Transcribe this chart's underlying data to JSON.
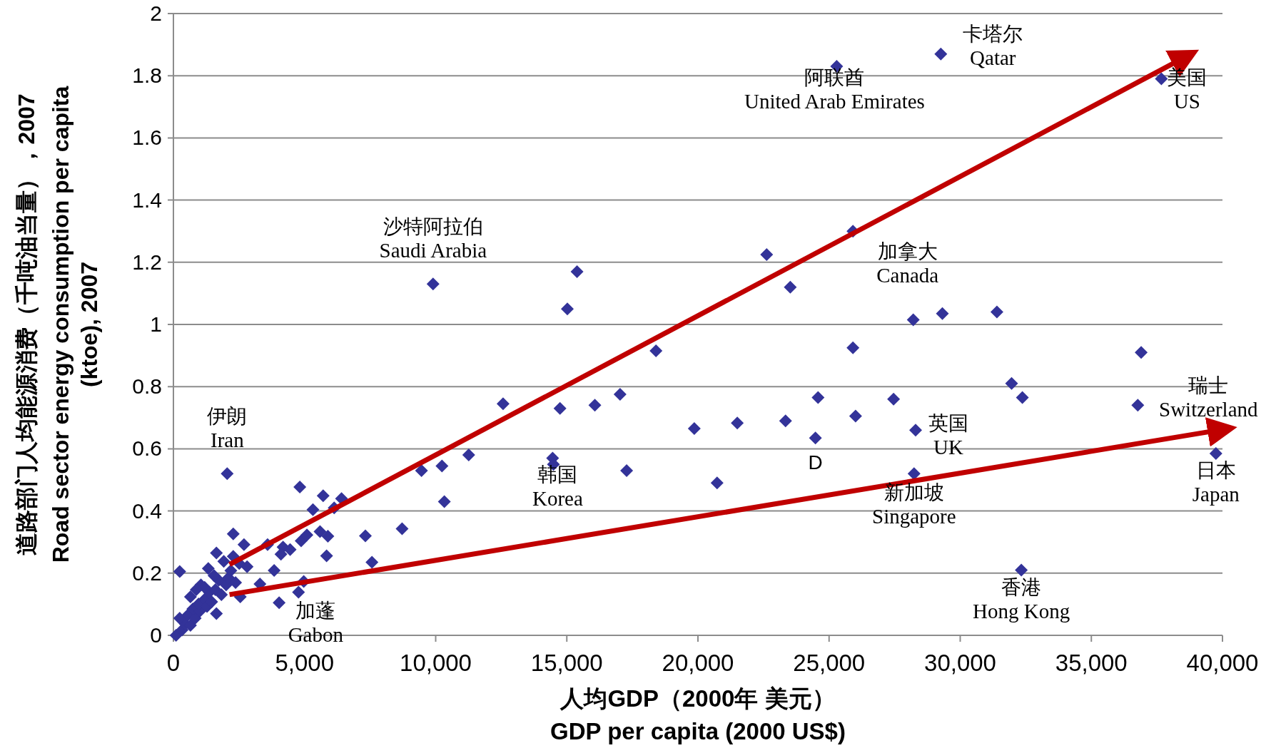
{
  "chart_data": {
    "type": "scatter",
    "xlabel": "人均GDP（2000年 美元）\nGDP per capita (2000 US$)",
    "ylabel": "道路部门人均能源消费（千吨油当量），2007\nRoad sector energy consumption per capita (ktoe), 2007",
    "xlim": [
      0,
      40000
    ],
    "ylim": [
      0,
      2
    ],
    "xticks": [
      0,
      {
        "value": 5000,
        "label": "5,000"
      },
      {
        "value": 10000,
        "label": "10,000"
      },
      {
        "value": 15000,
        "label": "15,000"
      },
      {
        "value": 20000,
        "label": "20,000"
      },
      {
        "value": 25000,
        "label": "25,000"
      },
      {
        "value": 30000,
        "label": "30,000"
      },
      {
        "value": 35000,
        "label": "35,000"
      },
      {
        "value": 40000,
        "label": "40,000"
      }
    ],
    "yticks": [
      0,
      0.2,
      0.4,
      0.6,
      0.8,
      1,
      1.2,
      1.4,
      1.6,
      1.8,
      2
    ],
    "grid": "y",
    "series": [
      {
        "marker": "diamond",
        "color": "#333399",
        "x": [
          25290,
          29260,
          37670,
          25910,
          22620,
          23520,
          9900,
          15390,
          15020,
          28210,
          29320,
          31400,
          18400,
          25910,
          36900,
          12570,
          14740,
          16070,
          17030,
          19860,
          21500,
          23340,
          24580,
          26010,
          27460,
          24480,
          28300,
          31960,
          32370,
          36770,
          39750,
          28240,
          32330,
          20730,
          17280,
          14460,
          14490,
          11260,
          10240,
          9460,
          10330,
          8720,
          7320,
          7570,
          2050,
          240,
          4820,
          5710,
          6410,
          5320,
          6130,
          2280,
          2690,
          3590,
          4180,
          4450,
          4100,
          4870,
          5090,
          5590,
          5890,
          5840,
          3840,
          2810,
          4970,
          4770,
          4030,
          3300,
          100,
          330,
          460,
          240,
          650,
          560,
          830,
          740,
          1010,
          650,
          960,
          1190,
          1280,
          1460,
          1640,
          1370,
          1050,
          1600,
          1830,
          1730,
          2010,
          2100,
          2370,
          2550,
          2190,
          1550,
          1330,
          1640,
          1920,
          1190,
          870,
          2280,
          2510
        ],
        "values": [
          1.83,
          1.87,
          1.79,
          1.3,
          1.225,
          1.12,
          1.13,
          1.17,
          1.05,
          1.015,
          1.035,
          1.04,
          0.915,
          0.925,
          0.91,
          0.745,
          0.73,
          0.74,
          0.775,
          0.665,
          0.683,
          0.69,
          0.765,
          0.705,
          0.76,
          0.635,
          0.66,
          0.81,
          0.765,
          0.74,
          0.585,
          0.52,
          0.21,
          0.49,
          0.53,
          0.57,
          0.55,
          0.58,
          0.545,
          0.53,
          0.43,
          0.343,
          0.32,
          0.235,
          0.52,
          0.205,
          0.477,
          0.449,
          0.44,
          0.404,
          0.41,
          0.326,
          0.292,
          0.292,
          0.284,
          0.276,
          0.261,
          0.304,
          0.323,
          0.334,
          0.319,
          0.256,
          0.209,
          0.221,
          0.173,
          0.139,
          0.105,
          0.165,
          0.0,
          0.017,
          0.036,
          0.055,
          0.032,
          0.066,
          0.055,
          0.085,
          0.078,
          0.124,
          0.101,
          0.116,
          0.093,
          0.108,
          0.07,
          0.139,
          0.162,
          0.147,
          0.131,
          0.177,
          0.162,
          0.185,
          0.17,
          0.124,
          0.208,
          0.192,
          0.215,
          0.265,
          0.238,
          0.154,
          0.147,
          0.254,
          0.231
        ]
      },
      {
        "type": "line",
        "color": "#c00000",
        "x": [
          2140,
          38600
        ],
        "values": [
          0.228,
          1.861
        ]
      },
      {
        "type": "line",
        "color": "#c00000",
        "x": [
          2140,
          40000
        ],
        "values": [
          0.131,
          0.662
        ]
      }
    ],
    "annotations": [
      {
        "text": "阿联酋\nUnited Arab Emirates",
        "x": 25290,
        "y": 1.83
      },
      {
        "text": "卡塔尔\nQatar",
        "x": 29260,
        "y": 1.87
      },
      {
        "text": "美国\nUS",
        "x": 37670,
        "y": 1.79
      },
      {
        "text": "沙特阿拉伯\nSaudi Arabia",
        "x": 9900,
        "y": 1.13
      },
      {
        "text": "加拿大\nCanada",
        "x": 28210,
        "y": 1.015
      },
      {
        "text": "伊朗\nIran",
        "x": 2050,
        "y": 0.52
      },
      {
        "text": "韩国\nKorea",
        "x": 14460,
        "y": 0.57
      },
      {
        "text": "D",
        "x": 24480,
        "y": 0.635
      },
      {
        "text": "英国\nUK",
        "x": 28300,
        "y": 0.66
      },
      {
        "text": "新加坡\nSingapore",
        "x": 28240,
        "y": 0.52
      },
      {
        "text": "香港\nHong Kong",
        "x": 32330,
        "y": 0.21
      },
      {
        "text": "瑞士\nSwitzerland",
        "x": 36770,
        "y": 0.74
      },
      {
        "text": "日本\nJapan",
        "x": 39750,
        "y": 0.585
      },
      {
        "text": "加蓬\nGabon",
        "x": 4770,
        "y": 0.139
      }
    ]
  }
}
